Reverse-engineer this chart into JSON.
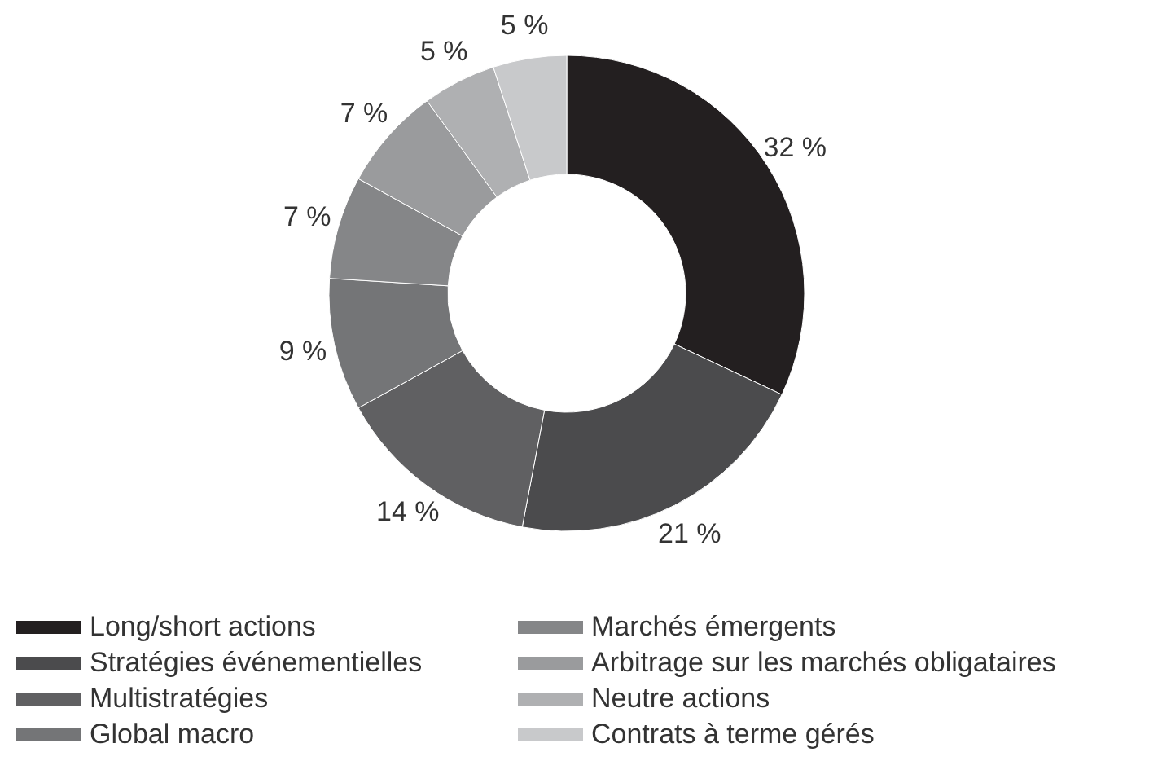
{
  "chart_data": {
    "type": "donut",
    "categories": [
      "Long/short actions",
      "Stratégies événementielles",
      "Multistratégies",
      "Global macro",
      "Marchés émergents",
      "Arbitrage sur les marchés obligataires",
      "Neutre actions",
      "Contrats à terme gérés"
    ],
    "values": [
      32,
      21,
      14,
      9,
      7,
      7,
      5,
      5
    ],
    "value_labels": [
      "32 %",
      "21 %",
      "14 %",
      "9 %",
      "7 %",
      "7 %",
      "5 %",
      "5 %"
    ],
    "colors": [
      "#231f20",
      "#4b4b4d",
      "#606062",
      "#747577",
      "#858688",
      "#9a9b9d",
      "#afb0b2",
      "#c8c9cb"
    ],
    "legend": "bottom left"
  }
}
